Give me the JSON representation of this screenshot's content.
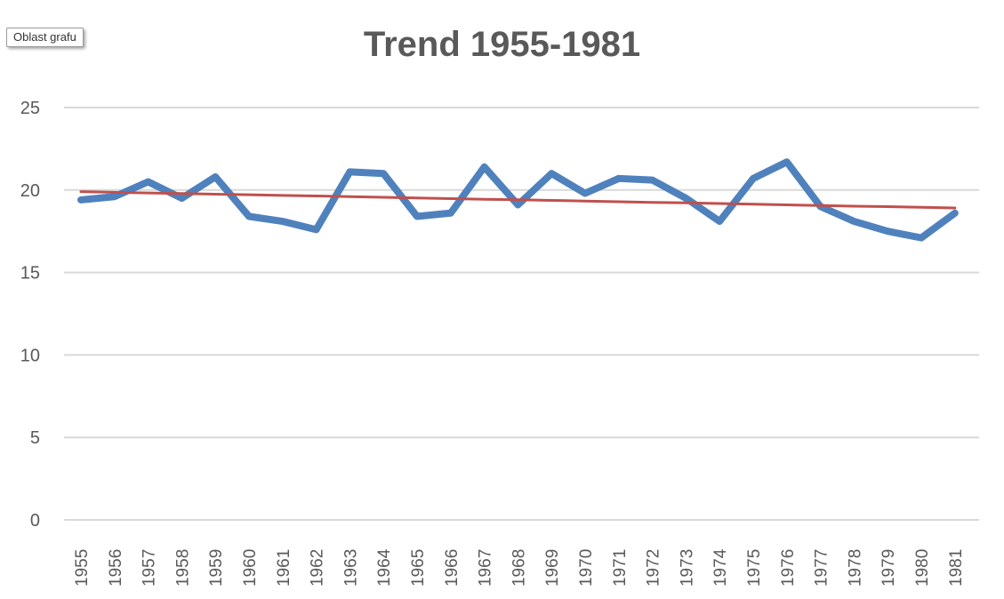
{
  "tooltip": {
    "label": "Oblast grafu"
  },
  "chart_data": {
    "type": "line",
    "title": "Trend 1955-1981",
    "xlabel": "",
    "ylabel": "",
    "ylim": [
      0,
      25
    ],
    "yticks": [
      "0",
      "5",
      "10",
      "15",
      "20",
      "25"
    ],
    "categories": [
      "1955",
      "1956",
      "1957",
      "1958",
      "1959",
      "1960",
      "1961",
      "1962",
      "1963",
      "1964",
      "1965",
      "1966",
      "1967",
      "1968",
      "1969",
      "1970",
      "1971",
      "1972",
      "1973",
      "1974",
      "1975",
      "1976",
      "1977",
      "1978",
      "1979",
      "1980",
      "1981"
    ],
    "series": [
      {
        "color": "#4f81bd",
        "values": [
          19.4,
          19.6,
          20.5,
          19.5,
          20.8,
          18.4,
          18.1,
          17.6,
          21.1,
          21.0,
          18.4,
          18.6,
          21.4,
          19.1,
          21.0,
          19.8,
          20.7,
          20.6,
          19.5,
          18.1,
          20.7,
          21.7,
          19.0,
          18.1,
          17.5,
          17.1,
          18.6
        ]
      },
      {
        "color": "#c0504d",
        "trendline": true,
        "values": [
          19.9,
          19.86,
          19.82,
          19.79,
          19.75,
          19.71,
          19.67,
          19.64,
          19.6,
          19.56,
          19.52,
          19.48,
          19.44,
          19.41,
          19.37,
          19.33,
          19.29,
          19.25,
          19.22,
          19.18,
          19.14,
          19.1,
          19.06,
          19.02,
          18.99,
          18.95,
          18.91
        ]
      }
    ],
    "grid": true,
    "legend": "none"
  }
}
